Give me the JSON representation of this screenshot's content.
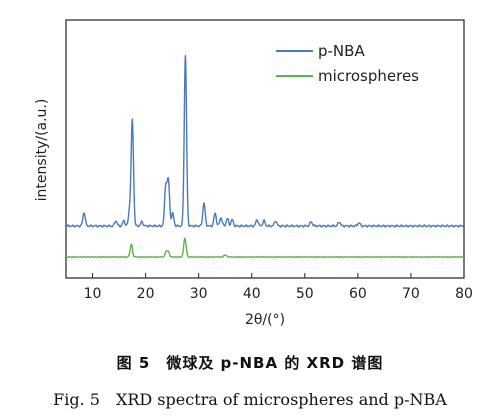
{
  "chart_data": {
    "type": "line",
    "xlabel": "2θ/(°)",
    "ylabel": "intensity/(a.u.)",
    "xlim": [
      5,
      80
    ],
    "x_ticks": [
      10,
      20,
      30,
      40,
      50,
      60,
      70,
      80
    ],
    "grid": false,
    "legend_position": "top-right",
    "series": [
      {
        "name": "p-NBA",
        "color": "#4a7ab8",
        "baseline": 0.08,
        "peaks": [
          [
            8.4,
            0.13
          ],
          [
            14.4,
            0.05
          ],
          [
            15.9,
            0.05
          ],
          [
            17.0,
            0.15
          ],
          [
            17.5,
            1.0
          ],
          [
            19.3,
            0.04
          ],
          [
            23.8,
            0.38
          ],
          [
            24.3,
            0.42
          ],
          [
            25.1,
            0.12
          ],
          [
            27.5,
            1.62
          ],
          [
            31.0,
            0.22
          ],
          [
            33.1,
            0.12
          ],
          [
            34.2,
            0.08
          ],
          [
            35.4,
            0.07
          ],
          [
            36.3,
            0.06
          ],
          [
            41.0,
            0.06
          ],
          [
            42.3,
            0.05
          ],
          [
            44.5,
            0.05
          ],
          [
            51.2,
            0.04
          ],
          [
            56.5,
            0.04
          ],
          [
            60.2,
            0.03
          ]
        ]
      },
      {
        "name": "microspheres",
        "color": "#5cb34a",
        "baseline": 0.0,
        "peaks": [
          [
            17.3,
            0.12
          ],
          [
            23.9,
            0.05
          ],
          [
            24.3,
            0.04
          ],
          [
            27.4,
            0.18
          ],
          [
            35.0,
            0.02
          ]
        ]
      }
    ]
  },
  "caption": {
    "chinese": "图 5　微球及 p-NBA 的 XRD 谱图",
    "english": "Fig. 5　XRD spectra of microspheres and p-NBA"
  }
}
